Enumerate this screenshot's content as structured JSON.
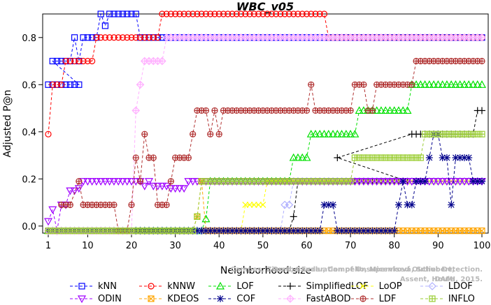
{
  "chart_data": {
    "type": "line",
    "title": "WBC_v05",
    "xlabel": "Neighborhood size",
    "ylabel": "Adjusted P@n",
    "xlim": [
      0,
      100
    ],
    "ylim": [
      -0.03,
      0.9
    ],
    "xticks": [
      "1",
      "10",
      "20",
      "30",
      "40",
      "50",
      "60",
      "70",
      "80",
      "90",
      "100"
    ],
    "yticks": [
      "0.0",
      "0.2",
      "0.4",
      "0.6",
      "0.8"
    ],
    "credit_lines": [
      "Campos, Zimek, Sander, Campello, Micenková, Schubert, Assent, Houle",
      "On the Evaluation of Unsupervised Outlier Detection. DAMI, 2015."
    ],
    "legend_rows": [
      [
        "kNN",
        "kNNW",
        "LOF",
        "SimplifiedLOF",
        "LoOP",
        "LDOF"
      ],
      [
        "ODIN",
        "KDEOS",
        "COF",
        "FastABOD",
        "LDF",
        "INFLO"
      ]
    ],
    "series": [
      {
        "name": "kNN",
        "color": "#0000ff",
        "marker": "square",
        "segments": [
          [
            1,
            8,
            0.6
          ],
          [
            2,
            6,
            0.7
          ],
          [
            7,
            7,
            0.8
          ],
          [
            8,
            8,
            0.7
          ],
          [
            9,
            12,
            0.8
          ],
          [
            13,
            13,
            0.9
          ],
          [
            14,
            14,
            0.85
          ],
          [
            15,
            21,
            0.9
          ],
          [
            22,
            100,
            0.8
          ]
        ]
      },
      {
        "name": "kNNW",
        "color": "#ff0000",
        "marker": "circle",
        "segments": [
          [
            1,
            1,
            0.39
          ],
          [
            2,
            4,
            0.6
          ],
          [
            5,
            8,
            0.7
          ],
          [
            9,
            11,
            0.7
          ],
          [
            12,
            12,
            0.8
          ],
          [
            13,
            26,
            0.8
          ],
          [
            27,
            64,
            0.9
          ],
          [
            65,
            100,
            0.8
          ]
        ]
      },
      {
        "name": "LOF",
        "color": "#00e000",
        "marker": "triangle",
        "segments": [
          [
            1,
            36,
            -0.02
          ],
          [
            37,
            37,
            0.03
          ],
          [
            38,
            56,
            0.19
          ],
          [
            57,
            60,
            0.29
          ],
          [
            61,
            71,
            0.39
          ],
          [
            72,
            83,
            0.49
          ],
          [
            84,
            100,
            0.6
          ]
        ]
      },
      {
        "name": "SimplifiedLOF",
        "color": "#000000",
        "marker": "plus",
        "segments": [
          [
            1,
            56,
            -0.02
          ],
          [
            57,
            57,
            0.04
          ],
          [
            58,
            83,
            0.19
          ],
          [
            67,
            67,
            0.29
          ],
          [
            84,
            98,
            0.39
          ],
          [
            99,
            100,
            0.49
          ]
        ]
      },
      {
        "name": "LoOP",
        "color": "#ffff00",
        "marker": "x",
        "segments": [
          [
            1,
            45,
            -0.02
          ],
          [
            46,
            50,
            0.09
          ],
          [
            51,
            100,
            0.19
          ]
        ]
      },
      {
        "name": "LDOF",
        "color": "#b0b0ff",
        "marker": "diamond",
        "segments": [
          [
            1,
            54,
            -0.02
          ],
          [
            55,
            56,
            0.09
          ],
          [
            57,
            100,
            0.19
          ]
        ]
      },
      {
        "name": "ODIN",
        "color": "#a000ff",
        "marker": "triangle-down",
        "segments": [
          [
            1,
            1,
            0.02
          ],
          [
            2,
            2,
            0.07
          ],
          [
            3,
            3,
            -0.02
          ],
          [
            4,
            5,
            0.09
          ],
          [
            6,
            7,
            0.15
          ],
          [
            8,
            8,
            0.16
          ],
          [
            9,
            22,
            0.19
          ],
          [
            23,
            23,
            0.17
          ],
          [
            24,
            24,
            0.19
          ],
          [
            25,
            28,
            0.17
          ],
          [
            29,
            32,
            0.16
          ],
          [
            33,
            100,
            0.19
          ]
        ]
      },
      {
        "name": "KDEOS",
        "color": "#ffa500",
        "marker": "square-x",
        "segments": [
          [
            1,
            34,
            -0.02
          ],
          [
            35,
            35,
            0.04
          ],
          [
            36,
            36,
            0.19
          ],
          [
            37,
            56,
            -0.02
          ],
          [
            57,
            100,
            -0.02
          ]
        ]
      },
      {
        "name": "COF",
        "color": "#00008b",
        "marker": "asterisk",
        "segments": [
          [
            1,
            63,
            -0.02
          ],
          [
            64,
            66,
            0.09
          ],
          [
            67,
            80,
            -0.02
          ],
          [
            81,
            81,
            0.09
          ],
          [
            82,
            82,
            0.19
          ],
          [
            83,
            84,
            0.09
          ],
          [
            85,
            87,
            0.19
          ],
          [
            88,
            88,
            0.29
          ],
          [
            89,
            90,
            0.39
          ],
          [
            91,
            92,
            0.29
          ],
          [
            93,
            93,
            0.09
          ],
          [
            94,
            94,
            0.29
          ],
          [
            95,
            97,
            0.29
          ],
          [
            98,
            100,
            0.19
          ]
        ]
      },
      {
        "name": "FastABOD",
        "color": "#ffb0ff",
        "marker": "diamond-plus",
        "segments": [
          [
            1,
            20,
            -0.02
          ],
          [
            21,
            21,
            0.49
          ],
          [
            22,
            22,
            0.6
          ],
          [
            23,
            27,
            0.7
          ],
          [
            28,
            100,
            0.8
          ]
        ]
      },
      {
        "name": "LDF",
        "color": "#b03030",
        "marker": "circle-plus",
        "segments": [
          [
            4,
            6,
            0.09
          ],
          [
            8,
            8,
            0.19
          ],
          [
            9,
            16,
            0.09
          ],
          [
            17,
            19,
            -0.02
          ],
          [
            20,
            20,
            0.09
          ],
          [
            21,
            21,
            0.29
          ],
          [
            22,
            22,
            0.19
          ],
          [
            23,
            23,
            0.39
          ],
          [
            24,
            25,
            0.29
          ],
          [
            26,
            28,
            0.09
          ],
          [
            29,
            29,
            0.19
          ],
          [
            30,
            33,
            0.29
          ],
          [
            34,
            34,
            0.39
          ],
          [
            35,
            37,
            0.49
          ],
          [
            38,
            38,
            0.39
          ],
          [
            39,
            39,
            0.49
          ],
          [
            40,
            40,
            0.39
          ],
          [
            41,
            60,
            0.49
          ],
          [
            61,
            61,
            0.6
          ],
          [
            62,
            70,
            0.49
          ],
          [
            71,
            73,
            0.6
          ],
          [
            74,
            75,
            0.49
          ],
          [
            76,
            84,
            0.6
          ],
          [
            85,
            100,
            0.7
          ]
        ]
      },
      {
        "name": "INFLO",
        "color": "#9acd32",
        "marker": "square-cross",
        "segments": [
          [
            1,
            34,
            -0.02
          ],
          [
            35,
            35,
            0.04
          ],
          [
            36,
            36,
            0.19
          ],
          [
            37,
            56,
            0.19
          ],
          [
            57,
            70,
            0.19
          ],
          [
            71,
            82,
            0.29
          ],
          [
            83,
            86,
            0.29
          ],
          [
            87,
            100,
            0.39
          ]
        ]
      }
    ]
  }
}
